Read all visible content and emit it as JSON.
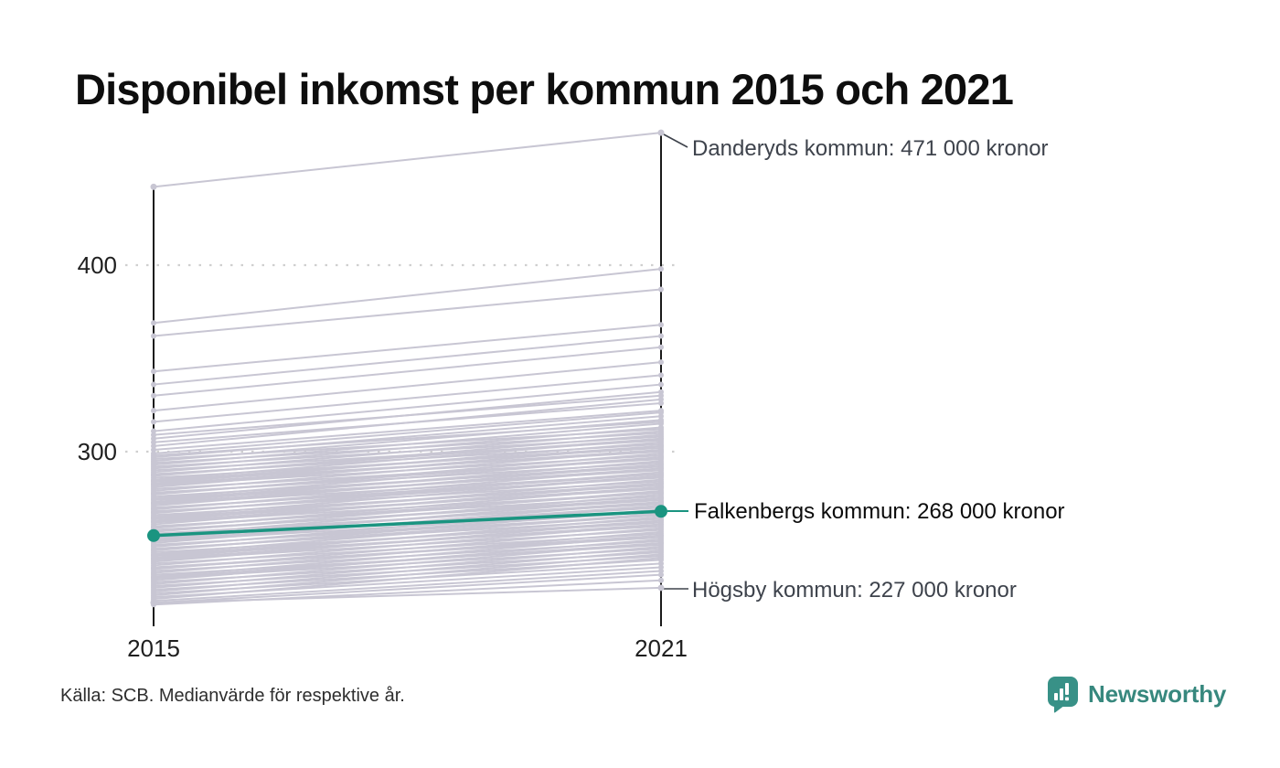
{
  "title": "Disponibel inkomst per kommun 2015 och 2021",
  "source": "Källa: SCB. Medianvärde för respektive år.",
  "logo": {
    "text": "Newsworthy",
    "icon_name": "newsworthy-bar-chart-bubble-icon",
    "color": "#37887e"
  },
  "colors": {
    "highlight": "#1a9480",
    "line_gray": "#c8c6d3",
    "axis": "#1b1b1b",
    "grid": "#cfcfcf",
    "annotation_gray": "#3e434c",
    "annotation_black": "#0b0b0b"
  },
  "chart_data": {
    "type": "line",
    "subtype": "slope-chart",
    "x": [
      2015,
      2021
    ],
    "x_labels": [
      "2015",
      "2021"
    ],
    "y_ticks": [
      400,
      300
    ],
    "y_tick_labels": [
      "400",
      "300"
    ],
    "unit": "tusen kronor (000 kronor)",
    "axis_note": "each vertical axis spans its own data range, grid dotted",
    "highlighted": {
      "name": "Falkenbergs kommun",
      "values": [
        255,
        268
      ],
      "label": "Falkenbergs kommun: 268 000 kronor"
    },
    "annotated": [
      {
        "name": "Danderyds kommun",
        "values": [
          442,
          471
        ],
        "label": "Danderyds kommun: 471 000 kronor"
      },
      {
        "name": "Högsby kommun",
        "values": [
          219,
          227
        ],
        "label": "Högsby kommun: 227 000 kronor"
      }
    ],
    "background_series": [
      [
        369,
        398
      ],
      [
        362,
        387
      ],
      [
        343,
        368
      ],
      [
        336,
        362
      ],
      [
        330,
        356
      ],
      [
        322,
        348
      ],
      [
        316,
        341
      ],
      [
        311,
        336
      ],
      [
        309,
        330
      ],
      [
        307,
        332
      ],
      [
        305,
        326
      ],
      [
        303,
        328
      ],
      [
        301,
        322
      ],
      [
        299,
        321
      ],
      [
        298,
        316
      ],
      [
        297,
        319
      ],
      [
        296,
        312
      ],
      [
        295,
        317
      ],
      [
        294,
        310
      ],
      [
        293,
        315
      ],
      [
        292,
        308
      ],
      [
        291,
        313
      ],
      [
        290,
        306
      ],
      [
        289,
        311
      ],
      [
        288,
        304
      ],
      [
        287,
        309
      ],
      [
        286,
        302
      ],
      [
        285,
        307
      ],
      [
        284,
        300
      ],
      [
        283,
        305
      ],
      [
        282,
        298
      ],
      [
        281,
        303
      ],
      [
        280,
        296
      ],
      [
        279,
        301
      ],
      [
        278,
        294
      ],
      [
        277,
        299
      ],
      [
        276,
        292
      ],
      [
        275,
        297
      ],
      [
        274,
        290
      ],
      [
        273,
        295
      ],
      [
        272,
        288
      ],
      [
        271,
        293
      ],
      [
        270,
        286
      ],
      [
        269,
        291
      ],
      [
        268,
        284
      ],
      [
        267,
        289
      ],
      [
        266,
        282
      ],
      [
        265,
        287
      ],
      [
        264,
        280
      ],
      [
        263,
        285
      ],
      [
        262,
        278
      ],
      [
        261,
        283
      ],
      [
        260,
        276
      ],
      [
        259,
        281
      ],
      [
        258,
        274
      ],
      [
        257,
        279
      ],
      [
        256,
        272
      ],
      [
        255,
        277
      ],
      [
        254,
        270
      ],
      [
        253,
        275
      ],
      [
        252,
        268
      ],
      [
        251,
        273
      ],
      [
        250,
        266
      ],
      [
        249,
        271
      ],
      [
        248,
        264
      ],
      [
        247,
        269
      ],
      [
        246,
        262
      ],
      [
        245,
        267
      ],
      [
        244,
        260
      ],
      [
        243,
        265
      ],
      [
        242,
        258
      ],
      [
        241,
        263
      ],
      [
        240,
        256
      ],
      [
        239,
        261
      ],
      [
        238,
        254
      ],
      [
        237,
        259
      ],
      [
        236,
        252
      ],
      [
        235,
        257
      ],
      [
        234,
        250
      ],
      [
        233,
        255
      ],
      [
        232,
        248
      ],
      [
        231,
        253
      ],
      [
        230,
        246
      ],
      [
        229,
        251
      ],
      [
        228,
        244
      ],
      [
        227,
        249
      ],
      [
        226,
        242
      ],
      [
        225,
        247
      ],
      [
        224,
        240
      ],
      [
        223,
        245
      ],
      [
        222,
        238
      ],
      [
        221,
        243
      ],
      [
        220,
        236
      ],
      [
        219,
        234
      ],
      [
        218,
        231
      ],
      [
        252.5,
        271
      ],
      [
        257.5,
        275
      ],
      [
        262.5,
        281
      ],
      [
        247.5,
        266
      ],
      [
        242.5,
        261
      ],
      [
        237.5,
        255
      ],
      [
        232.5,
        251
      ],
      [
        267.5,
        287
      ],
      [
        272.5,
        291
      ],
      [
        277.5,
        297
      ],
      [
        282.5,
        301
      ],
      [
        287.5,
        307
      ],
      [
        244.5,
        263
      ],
      [
        254.5,
        273
      ],
      [
        264.5,
        283
      ],
      [
        274.5,
        293
      ],
      [
        284.5,
        303
      ],
      [
        249.5,
        268
      ],
      [
        259.5,
        278
      ],
      [
        269.5,
        288
      ]
    ]
  }
}
